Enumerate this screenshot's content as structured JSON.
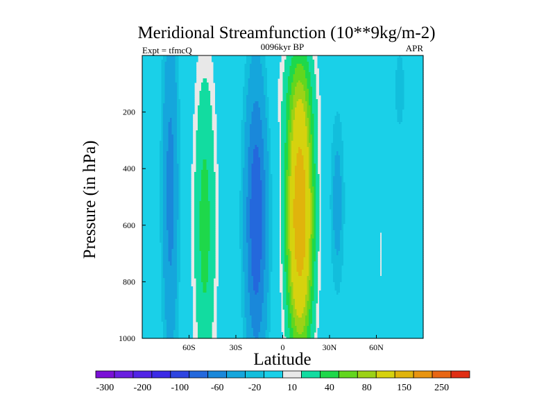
{
  "chart_data": {
    "type": "heatmap",
    "subtype": "filled-contour",
    "title": "Meridional Streamfunction (10**9kg/m-2)",
    "left_label": "Expt = tfmcQ",
    "center_label": "0096kyr BP",
    "right_label": "APR",
    "xlabel": "Latitude",
    "ylabel": "Pressure (in hPa)",
    "xlim": [
      -90,
      90
    ],
    "ylim": [
      1000,
      0
    ],
    "x_ticks": [
      {
        "value": -60,
        "label": "60S"
      },
      {
        "value": -30,
        "label": "30S"
      },
      {
        "value": 0,
        "label": "0"
      },
      {
        "value": 30,
        "label": "30N"
      },
      {
        "value": 60,
        "label": "60N"
      }
    ],
    "y_ticks": [
      {
        "value": 200,
        "label": "200"
      },
      {
        "value": 400,
        "label": "400"
      },
      {
        "value": 600,
        "label": "600"
      },
      {
        "value": 800,
        "label": "800"
      },
      {
        "value": 1000,
        "label": "1000"
      }
    ],
    "colorbar": {
      "levels": [
        -300,
        -250,
        -200,
        -150,
        -100,
        -80,
        -60,
        -40,
        -20,
        -10,
        10,
        20,
        40,
        60,
        80,
        100,
        150,
        200,
        250,
        300
      ],
      "labels": [
        "-300",
        "-200",
        "-100",
        "-60",
        "-20",
        "10",
        "40",
        "80",
        "150",
        "250"
      ],
      "colors": [
        "#7a10d6",
        "#6a1fe0",
        "#5224e6",
        "#3c2ae6",
        "#2e44e0",
        "#2468dc",
        "#1a88da",
        "#15a6dc",
        "#12bedc",
        "#1ad0e8",
        "#e8e8e8",
        "#12dca0",
        "#1ed84a",
        "#62d61e",
        "#9cd216",
        "#d6d20e",
        "#e0b40c",
        "#e89410",
        "#e86614",
        "#e02e14"
      ]
    },
    "features": [
      {
        "name": "southern-polar-negative-cell",
        "sign": "negative",
        "center_lat": -72,
        "center_p": 500,
        "peak_level": -40
      },
      {
        "name": "southern-midlat-positive-cell",
        "sign": "positive",
        "center_lat": -50,
        "center_p": 600,
        "peak_level": 40
      },
      {
        "name": "southern-hadley-cell",
        "sign": "negative",
        "center_lat": -17,
        "center_p": 600,
        "peak_level": -60
      },
      {
        "name": "northern-hadley-cell",
        "sign": "positive",
        "center_lat": 11,
        "center_p": 550,
        "peak_level": 150
      },
      {
        "name": "northern-midlat-negative-cell",
        "sign": "negative",
        "center_lat": 35,
        "center_p": 500,
        "peak_level": -20
      },
      {
        "name": "northern-polar-positive-cell",
        "sign": "positive",
        "center_lat": 63,
        "center_p": 700,
        "peak_level": 10
      }
    ]
  }
}
